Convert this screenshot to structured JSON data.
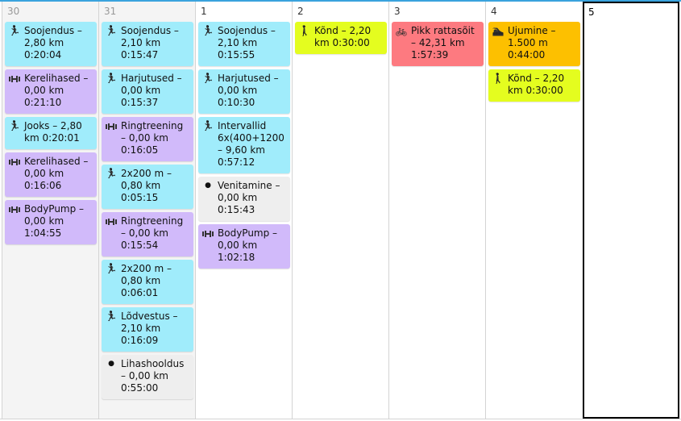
{
  "colors": {
    "accent": "#3aa3dd",
    "run": "#a0ecfb",
    "strength": "#d1bafa",
    "walk": "#e4fd1f",
    "bike": "#fd7a80",
    "swim": "#fdc000",
    "other": "#eeeeee"
  },
  "days": [
    {
      "label": "30",
      "other_month": true,
      "events": [
        {
          "type": "run",
          "icon": "running-icon",
          "lines": [
            "Soojendus –",
            "2,80 km",
            "0:20:04"
          ]
        },
        {
          "type": "strength",
          "icon": "dumbbell-icon",
          "lines": [
            "Kerelihased –",
            "0,00 km",
            "0:21:10"
          ]
        },
        {
          "type": "run",
          "icon": "running-icon",
          "lines": [
            "Jooks – 2,80",
            "km 0:20:01"
          ]
        },
        {
          "type": "strength",
          "icon": "dumbbell-icon",
          "lines": [
            "Kerelihased –",
            "0,00 km",
            "0:16:06"
          ]
        },
        {
          "type": "strength",
          "icon": "dumbbell-icon",
          "lines": [
            "BodyPump –",
            "0,00 km",
            "1:04:55"
          ]
        }
      ]
    },
    {
      "label": "31",
      "other_month": true,
      "events": [
        {
          "type": "run",
          "icon": "running-icon",
          "lines": [
            "Soojendus –",
            "2,10 km",
            "0:15:47"
          ]
        },
        {
          "type": "run",
          "icon": "running-icon",
          "lines": [
            "Harjutused –",
            "0,00 km",
            "0:15:37"
          ]
        },
        {
          "type": "strength",
          "icon": "dumbbell-icon",
          "lines": [
            "Ringtreening",
            "– 0,00 km",
            "0:16:05"
          ]
        },
        {
          "type": "run",
          "icon": "running-icon",
          "lines": [
            "2x200 m –",
            "0,80 km",
            "0:05:15"
          ]
        },
        {
          "type": "strength",
          "icon": "dumbbell-icon",
          "lines": [
            "Ringtreening",
            "– 0,00 km",
            "0:15:54"
          ]
        },
        {
          "type": "run",
          "icon": "running-icon",
          "lines": [
            "2x200 m –",
            "0,80 km",
            "0:06:01"
          ]
        },
        {
          "type": "run",
          "icon": "running-icon",
          "lines": [
            "Lõdvestus –",
            "2,10 km",
            "0:16:09"
          ]
        },
        {
          "type": "other",
          "icon": "bullet-icon",
          "lines": [
            "Lihashooldus",
            "– 0,00 km",
            "0:55:00"
          ]
        }
      ]
    },
    {
      "label": "1",
      "events": [
        {
          "type": "run",
          "icon": "running-icon",
          "lines": [
            "Soojendus –",
            "2,10 km",
            "0:15:55"
          ]
        },
        {
          "type": "run",
          "icon": "running-icon",
          "lines": [
            "Harjutused –",
            "0,00 km",
            "0:10:30"
          ]
        },
        {
          "type": "run",
          "icon": "running-icon",
          "lines": [
            "Intervallid",
            "6x(400+1200",
            "– 9,60 km",
            "0:57:12"
          ]
        },
        {
          "type": "other",
          "icon": "bullet-icon",
          "lines": [
            "Venitamine –",
            "0,00 km",
            "0:15:43"
          ]
        },
        {
          "type": "strength",
          "icon": "dumbbell-icon",
          "lines": [
            "BodyPump –",
            "0,00 km",
            "1:02:18"
          ]
        }
      ]
    },
    {
      "label": "2",
      "events": [
        {
          "type": "walk",
          "icon": "walking-icon",
          "lines": [
            "Kõnd – 2,20",
            "km 0:30:00"
          ]
        }
      ]
    },
    {
      "label": "3",
      "events": [
        {
          "type": "bike",
          "icon": "bicycle-icon",
          "lines": [
            "Pikk rattasõit",
            "– 42,31 km",
            "1:57:39"
          ]
        }
      ]
    },
    {
      "label": "4",
      "events": [
        {
          "type": "swim",
          "icon": "swimming-icon",
          "lines": [
            "Ujumine –",
            "1.500 m",
            "0:44:00"
          ]
        },
        {
          "type": "walk",
          "icon": "walking-icon",
          "lines": [
            "Kõnd – 2,20",
            "km 0:30:00"
          ]
        }
      ]
    },
    {
      "label": "5",
      "today": true,
      "events": []
    }
  ]
}
